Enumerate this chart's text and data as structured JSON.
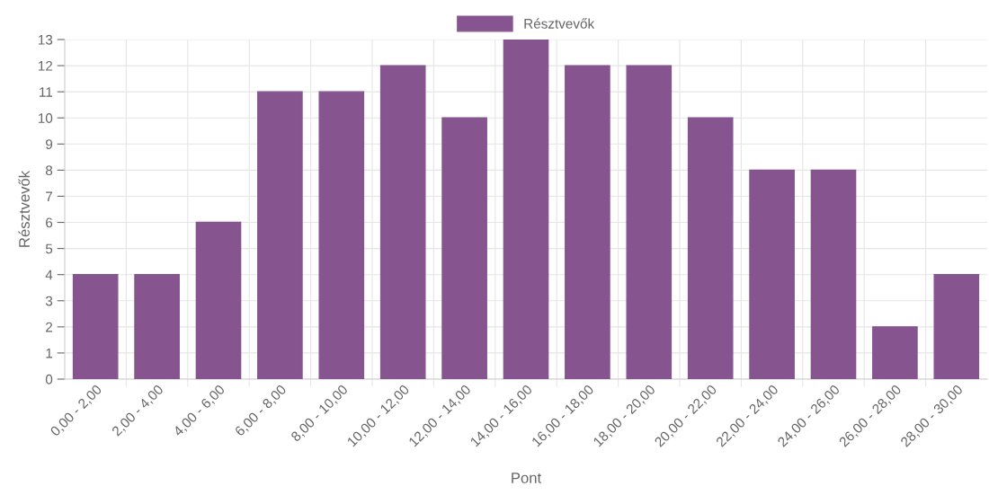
{
  "chart_data": {
    "type": "bar",
    "categories": [
      "0,00 - 2,00",
      "2,00 - 4,00",
      "4,00 - 6,00",
      "6,00 - 8,00",
      "8,00 - 10,00",
      "10,00 - 12,00",
      "12,00 - 14,00",
      "14,00 - 16,00",
      "16,00 - 18,00",
      "18,00 - 20,00",
      "20,00 - 22,00",
      "22,00 - 24,00",
      "24,00 - 26,00",
      "26,00 - 28,00",
      "28,00 - 30,00"
    ],
    "series": [
      {
        "name": "Résztvevők",
        "color": "#86548f",
        "values": [
          4,
          4,
          6,
          11,
          11,
          12,
          10,
          13,
          12,
          12,
          10,
          8,
          8,
          2,
          4
        ]
      }
    ],
    "xlabel": "Pont",
    "ylabel": "Résztvevők",
    "ylim": [
      0,
      13
    ],
    "yticks": [
      0,
      1,
      2,
      3,
      4,
      5,
      6,
      7,
      8,
      9,
      10,
      11,
      12,
      13
    ],
    "grid": true,
    "legend": "top"
  }
}
